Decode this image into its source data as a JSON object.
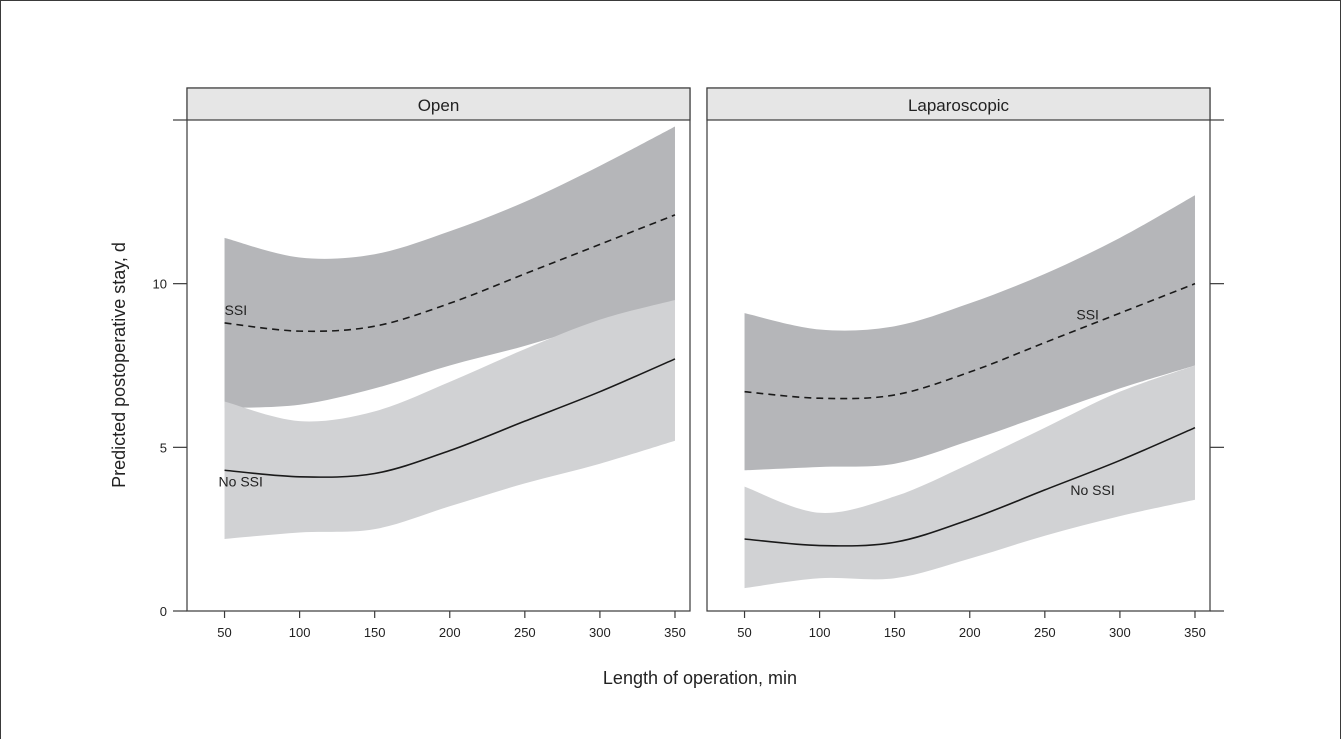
{
  "chart_data": {
    "type": "line",
    "ylabel": "Predicted postoperative stay, d",
    "xlabel": "Length of operation, min",
    "xlim": [
      25,
      360
    ],
    "ylim": [
      0,
      15
    ],
    "xticks": [
      50,
      100,
      150,
      200,
      250,
      300,
      350
    ],
    "yticks": [
      0,
      5,
      10
    ],
    "band_colors": {
      "SSI": "#b5b6b9",
      "No SSI": "#d1d2d4"
    },
    "line_color": "#1a1a1a",
    "panels": [
      {
        "title": "Open",
        "series": [
          {
            "name": "SSI",
            "style": "dashed",
            "x": [
              50,
              100,
              150,
              200,
              250,
              300,
              350
            ],
            "y": [
              8.8,
              8.55,
              8.7,
              9.4,
              10.3,
              11.2,
              12.1
            ],
            "lower": [
              6.2,
              6.3,
              6.8,
              7.5,
              8.1,
              8.8,
              9.4
            ],
            "upper": [
              11.4,
              10.8,
              10.9,
              11.6,
              12.5,
              13.6,
              14.8
            ]
          },
          {
            "name": "No SSI",
            "style": "solid",
            "x": [
              50,
              100,
              150,
              200,
              250,
              300,
              350
            ],
            "y": [
              4.3,
              4.1,
              4.2,
              4.9,
              5.8,
              6.7,
              7.7
            ],
            "lower": [
              2.2,
              2.4,
              2.5,
              3.2,
              3.9,
              4.5,
              5.2
            ],
            "upper": [
              6.4,
              5.8,
              6.1,
              7.0,
              8.0,
              8.9,
              9.5
            ]
          }
        ],
        "annotations": [
          {
            "text": "SSI",
            "x": 50,
            "y": 9.05
          },
          {
            "text": "No SSI",
            "x": 46,
            "y": 3.8
          }
        ]
      },
      {
        "title": "Laparoscopic",
        "series": [
          {
            "name": "SSI",
            "style": "dashed",
            "x": [
              50,
              100,
              150,
              200,
              250,
              300,
              350
            ],
            "y": [
              6.7,
              6.5,
              6.6,
              7.3,
              8.2,
              9.1,
              10.0
            ],
            "lower": [
              4.3,
              4.4,
              4.5,
              5.2,
              6.0,
              6.8,
              7.5
            ],
            "upper": [
              9.1,
              8.6,
              8.7,
              9.4,
              10.3,
              11.4,
              12.7
            ]
          },
          {
            "name": "No SSI",
            "style": "solid",
            "x": [
              50,
              100,
              150,
              200,
              250,
              300,
              350
            ],
            "y": [
              2.2,
              2.0,
              2.1,
              2.8,
              3.7,
              4.6,
              5.6
            ],
            "lower": [
              0.7,
              1.0,
              1.0,
              1.6,
              2.3,
              2.9,
              3.4
            ],
            "upper": [
              3.8,
              3.0,
              3.5,
              4.5,
              5.6,
              6.7,
              7.5
            ]
          }
        ],
        "annotations": [
          {
            "text": "SSI",
            "x": 271,
            "y": 8.9
          },
          {
            "text": "No SSI",
            "x": 267,
            "y": 3.55
          }
        ]
      }
    ]
  }
}
